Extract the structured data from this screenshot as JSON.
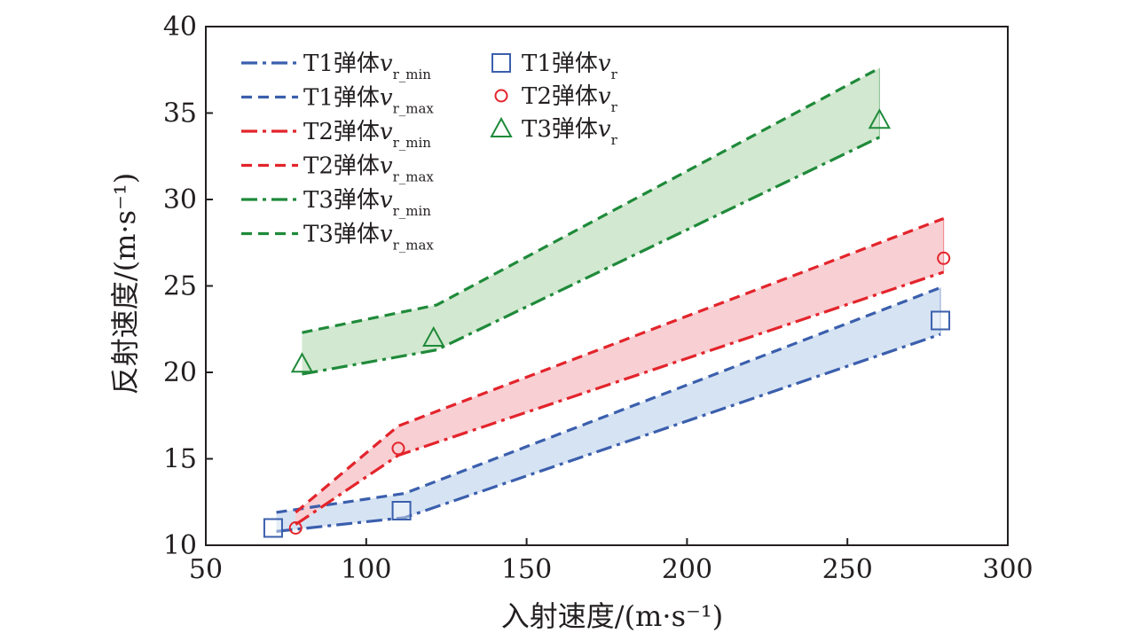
{
  "chart_data": {
    "type": "line",
    "xlabel": "入射速度/(m·s⁻¹)",
    "ylabel": "反射速度/(m·s⁻¹)",
    "xlim": [
      50,
      300
    ],
    "ylim": [
      10,
      40
    ],
    "xticks": [
      "50",
      "100",
      "150",
      "200",
      "250",
      "300"
    ],
    "yticks": [
      "10",
      "15",
      "20",
      "25",
      "30",
      "35",
      "40"
    ],
    "legend_placement": "top-left",
    "series": [
      {
        "name": "T1弹体v_r_min",
        "style": "dashdot",
        "color": "#3b5fad",
        "x": [
          72,
          112,
          279
        ],
        "y": [
          10.8,
          11.6,
          22.2
        ]
      },
      {
        "name": "T1弹体v_r_max",
        "style": "dashed",
        "color": "#3b5fad",
        "x": [
          72,
          112,
          279
        ],
        "y": [
          11.9,
          13.0,
          24.9
        ]
      },
      {
        "name": "T2弹体v_r_min",
        "style": "dashdot",
        "color": "#e3242b",
        "x": [
          78,
          110,
          280
        ],
        "y": [
          11.2,
          15.2,
          25.8
        ]
      },
      {
        "name": "T2弹体v_r_max",
        "style": "dashed",
        "color": "#e3242b",
        "x": [
          78,
          110,
          280
        ],
        "y": [
          11.9,
          16.9,
          28.9
        ]
      },
      {
        "name": "T3弹体v_r_min",
        "style": "dashdot",
        "color": "#1f8a3a",
        "x": [
          80,
          122,
          260
        ],
        "y": [
          19.9,
          21.3,
          33.6
        ]
      },
      {
        "name": "T3弹体v_r_max",
        "style": "dashed",
        "color": "#1f8a3a",
        "x": [
          80,
          122,
          260
        ],
        "y": [
          22.3,
          23.9,
          37.6
        ]
      },
      {
        "name": "T1弹体v_r",
        "style": "marker-square",
        "color": "#3b5fad",
        "x": [
          71,
          111,
          279
        ],
        "y": [
          11.0,
          12.0,
          23.0
        ]
      },
      {
        "name": "T2弹体v_r",
        "style": "marker-circle",
        "color": "#e3242b",
        "x": [
          78,
          110,
          280
        ],
        "y": [
          11.0,
          15.6,
          26.6
        ]
      },
      {
        "name": "T3弹体v_r",
        "style": "marker-triangle",
        "color": "#1f8a3a",
        "x": [
          80,
          121,
          260
        ],
        "y": [
          20.5,
          22.0,
          34.6
        ]
      }
    ],
    "bands": [
      {
        "lower": 0,
        "upper": 1,
        "fill": "#d6e3f3"
      },
      {
        "lower": 2,
        "upper": 3,
        "fill": "#f8cfd3"
      },
      {
        "lower": 4,
        "upper": 5,
        "fill": "#d2e8d0"
      }
    ],
    "legend": {
      "line_entries": [
        {
          "prefix": "T1弹体",
          "var": "v",
          "sub": "r_min"
        },
        {
          "prefix": "T1弹体",
          "var": "v",
          "sub": "r_max"
        },
        {
          "prefix": "T2弹体",
          "var": "v",
          "sub": "r_min"
        },
        {
          "prefix": "T2弹体",
          "var": "v",
          "sub": "r_max"
        },
        {
          "prefix": "T3弹体",
          "var": "v",
          "sub": "r_min"
        },
        {
          "prefix": "T3弹体",
          "var": "v",
          "sub": "r_max"
        }
      ],
      "marker_entries": [
        {
          "prefix": "T1弹体",
          "var": "v",
          "sub": "r"
        },
        {
          "prefix": "T2弹体",
          "var": "v",
          "sub": "r"
        },
        {
          "prefix": "T3弹体",
          "var": "v",
          "sub": "r"
        }
      ]
    }
  }
}
